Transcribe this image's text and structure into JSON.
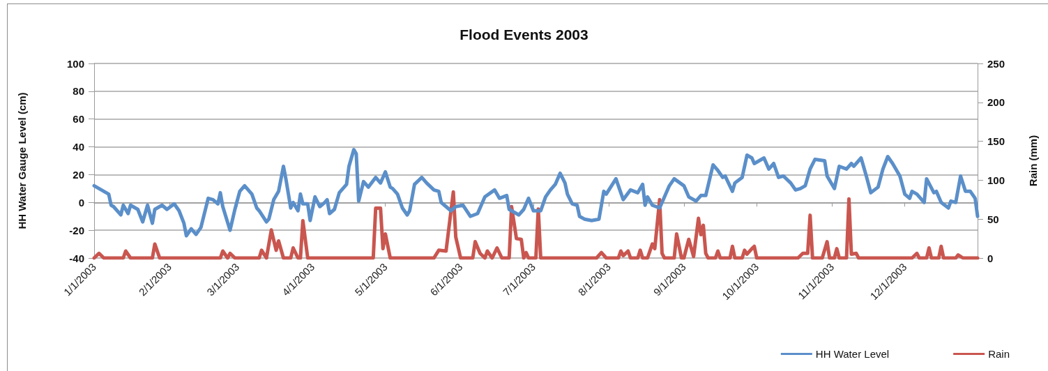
{
  "chart_data": {
    "type": "line",
    "title": "Flood Events 2003",
    "ylabel": "HH Water Gauge Level (cm)",
    "y2label": "Rain (mm)",
    "xlim": [
      "2003-01-01",
      "2003-12-31"
    ],
    "xticks": [
      {
        "value": "2003-01-01",
        "label": "1/1/2003"
      },
      {
        "value": "2003-02-01",
        "label": "2/1/2003"
      },
      {
        "value": "2003-03-01",
        "label": "3/1/2003"
      },
      {
        "value": "2003-04-01",
        "label": "4/1/2003"
      },
      {
        "value": "2003-05-01",
        "label": "5/1/2003"
      },
      {
        "value": "2003-06-01",
        "label": "6/1/2003"
      },
      {
        "value": "2003-07-01",
        "label": "7/1/2003"
      },
      {
        "value": "2003-08-01",
        "label": "8/1/2003"
      },
      {
        "value": "2003-09-01",
        "label": "9/1/2003"
      },
      {
        "value": "2003-10-01",
        "label": "10/1/2003"
      },
      {
        "value": "2003-11-01",
        "label": "11/1/2003"
      },
      {
        "value": "2003-12-01",
        "label": "12/1/2003"
      }
    ],
    "ylim": [
      -40,
      100
    ],
    "yticks": [
      -40,
      -20,
      0,
      20,
      40,
      60,
      80,
      100
    ],
    "y2lim": [
      0,
      250
    ],
    "y2ticks": [
      0,
      50,
      100,
      150,
      200,
      250
    ],
    "grid": "y",
    "legend": "bottom right",
    "marker": "none",
    "line_style": "solid",
    "series": [
      {
        "name": "HH Water Level",
        "color": "#5b8fc9",
        "x": [
          "2003-01-01",
          "2003-01-04",
          "2003-01-07",
          "2003-01-08",
          "2003-01-09",
          "2003-01-12",
          "2003-01-13",
          "2003-01-15",
          "2003-01-16",
          "2003-01-19",
          "2003-01-21",
          "2003-01-23",
          "2003-01-25",
          "2003-01-26",
          "2003-01-29",
          "2003-01-31",
          "2003-02-03",
          "2003-02-05",
          "2003-02-07",
          "2003-02-08",
          "2003-02-10",
          "2003-02-12",
          "2003-02-14",
          "2003-02-17",
          "2003-02-19",
          "2003-02-21",
          "2003-02-22",
          "2003-02-23",
          "2003-02-26",
          "2003-02-28",
          "2003-03-02",
          "2003-03-04",
          "2003-03-07",
          "2003-03-09",
          "2003-03-10",
          "2003-03-13",
          "2003-03-14",
          "2003-03-16",
          "2003-03-18",
          "2003-03-20",
          "2003-03-21",
          "2003-03-23",
          "2003-03-24",
          "2003-03-26",
          "2003-03-27",
          "2003-03-28",
          "2003-03-30",
          "2003-03-31",
          "2003-04-02",
          "2003-04-04",
          "2003-04-06",
          "2003-04-07",
          "2003-04-08",
          "2003-04-10",
          "2003-04-12",
          "2003-04-15",
          "2003-04-16",
          "2003-04-18",
          "2003-04-19",
          "2003-04-20",
          "2003-04-22",
          "2003-04-24",
          "2003-04-27",
          "2003-04-29",
          "2003-05-01",
          "2003-05-03",
          "2003-05-04",
          "2003-05-06",
          "2003-05-08",
          "2003-05-10",
          "2003-05-11",
          "2003-05-13",
          "2003-05-16",
          "2003-05-18",
          "2003-05-21",
          "2003-05-23",
          "2003-05-24",
          "2003-05-26",
          "2003-05-28",
          "2003-05-30",
          "2003-06-02",
          "2003-06-05",
          "2003-06-08",
          "2003-06-11",
          "2003-06-15",
          "2003-06-17",
          "2003-06-20",
          "2003-06-21",
          "2003-06-25",
          "2003-06-27",
          "2003-06-29",
          "2003-07-01",
          "2003-07-04",
          "2003-07-06",
          "2003-07-08",
          "2003-07-10",
          "2003-07-12",
          "2003-07-14",
          "2003-07-15",
          "2003-07-17",
          "2003-07-19",
          "2003-07-20",
          "2003-07-22",
          "2003-07-25",
          "2003-07-28",
          "2003-07-30",
          "2003-07-31",
          "2003-08-04",
          "2003-08-06",
          "2003-08-07",
          "2003-08-10",
          "2003-08-13",
          "2003-08-15",
          "2003-08-16",
          "2003-08-17",
          "2003-08-19",
          "2003-08-22",
          "2003-08-24",
          "2003-08-26",
          "2003-08-28",
          "2003-09-01",
          "2003-09-03",
          "2003-09-06",
          "2003-09-08",
          "2003-09-10",
          "2003-09-13",
          "2003-09-15",
          "2003-09-17",
          "2003-09-18",
          "2003-09-21",
          "2003-09-22",
          "2003-09-25",
          "2003-09-27",
          "2003-09-29",
          "2003-09-30",
          "2003-10-04",
          "2003-10-06",
          "2003-10-08",
          "2003-10-10",
          "2003-10-12",
          "2003-10-15",
          "2003-10-17",
          "2003-10-19",
          "2003-10-21",
          "2003-10-23",
          "2003-10-25",
          "2003-10-29",
          "2003-10-30",
          "2003-11-02",
          "2003-11-04",
          "2003-11-07",
          "2003-11-09",
          "2003-11-10",
          "2003-11-13",
          "2003-11-15",
          "2003-11-17",
          "2003-11-20",
          "2003-11-22",
          "2003-11-24",
          "2003-11-26",
          "2003-11-29",
          "2003-12-01",
          "2003-12-03",
          "2003-12-04",
          "2003-12-06",
          "2003-12-09",
          "2003-12-10",
          "2003-12-13",
          "2003-12-14",
          "2003-12-16",
          "2003-12-19",
          "2003-12-20",
          "2003-12-22",
          "2003-12-24",
          "2003-12-26",
          "2003-12-28",
          "2003-12-30",
          "2003-12-31"
        ],
        "values": [
          12,
          9,
          6,
          -2,
          -3,
          -9,
          -2,
          -8,
          -2,
          -5,
          -14,
          -2,
          -15,
          -5,
          -2,
          -5,
          -1,
          -6,
          -15,
          -24,
          -19,
          -23,
          -18,
          3,
          2,
          -1,
          7,
          -3,
          -20,
          -5,
          8,
          12,
          6,
          -4,
          -6,
          -14,
          -12,
          2,
          8,
          26,
          17,
          -4,
          0,
          -6,
          6,
          -1,
          -1,
          -13,
          4,
          -3,
          0,
          2,
          -8,
          -5,
          7,
          13,
          26,
          38,
          35,
          1,
          15,
          11,
          18,
          14,
          22,
          11,
          10,
          6,
          -4,
          -9,
          -6,
          13,
          18,
          14,
          9,
          8,
          0,
          -3,
          -6,
          -3,
          -2,
          -10,
          -8,
          4,
          9,
          3,
          5,
          -5,
          -9,
          -5,
          3,
          -6,
          -6,
          4,
          9,
          13,
          21,
          14,
          6,
          -1,
          -2,
          -10,
          -12,
          -13,
          -12,
          8,
          6,
          17,
          7,
          2,
          9,
          7,
          13,
          -2,
          4,
          -2,
          -4,
          4,
          12,
          17,
          12,
          4,
          1,
          5,
          5,
          27,
          23,
          18,
          19,
          8,
          14,
          18,
          34,
          32,
          28,
          32,
          24,
          28,
          18,
          19,
          14,
          9,
          10,
          12,
          24,
          31,
          30,
          19,
          10,
          26,
          24,
          28,
          26,
          32,
          20,
          7,
          11,
          24,
          33,
          28,
          19,
          6,
          3,
          8,
          6,
          0,
          17,
          7,
          8,
          0,
          -4,
          1,
          0,
          19,
          8,
          8,
          3,
          -10
        ]
      },
      {
        "name": "Rain",
        "color": "#c9564f",
        "axis": "y2",
        "x": [
          "2003-01-01",
          "2003-01-03",
          "2003-01-05",
          "2003-01-13",
          "2003-01-14",
          "2003-01-16",
          "2003-01-25",
          "2003-01-26",
          "2003-01-28",
          "2003-02-22",
          "2003-02-23",
          "2003-02-25",
          "2003-02-26",
          "2003-02-28",
          "2003-03-10",
          "2003-03-11",
          "2003-03-13",
          "2003-03-15",
          "2003-03-17",
          "2003-03-18",
          "2003-03-20",
          "2003-03-23",
          "2003-03-24",
          "2003-03-26",
          "2003-03-27",
          "2003-03-28",
          "2003-03-30",
          "2003-04-26",
          "2003-04-27",
          "2003-04-29",
          "2003-04-30",
          "2003-05-01",
          "2003-05-03",
          "2003-05-21",
          "2003-05-23",
          "2003-05-26",
          "2003-05-29",
          "2003-05-30",
          "2003-06-01",
          "2003-06-06",
          "2003-06-07",
          "2003-06-09",
          "2003-06-11",
          "2003-06-12",
          "2003-06-14",
          "2003-06-16",
          "2003-06-18",
          "2003-06-21",
          "2003-06-22",
          "2003-06-24",
          "2003-06-26",
          "2003-06-27",
          "2003-06-28",
          "2003-06-29",
          "2003-07-02",
          "2003-07-03",
          "2003-07-04",
          "2003-07-27",
          "2003-07-29",
          "2003-07-31",
          "2003-08-05",
          "2003-08-06",
          "2003-08-07",
          "2003-08-09",
          "2003-08-10",
          "2003-08-13",
          "2003-08-14",
          "2003-08-15",
          "2003-08-17",
          "2003-08-19",
          "2003-08-20",
          "2003-08-22",
          "2003-08-23",
          "2003-08-24",
          "2003-08-28",
          "2003-08-29",
          "2003-08-31",
          "2003-09-01",
          "2003-09-03",
          "2003-09-05",
          "2003-09-07",
          "2003-09-08",
          "2003-09-09",
          "2003-09-10",
          "2003-09-11",
          "2003-09-14",
          "2003-09-15",
          "2003-09-16",
          "2003-09-20",
          "2003-09-21",
          "2003-09-22",
          "2003-09-25",
          "2003-09-26",
          "2003-09-27",
          "2003-09-29",
          "2003-09-30",
          "2003-10-01",
          "2003-10-18",
          "2003-10-20",
          "2003-10-22",
          "2003-10-23",
          "2003-10-24",
          "2003-10-28",
          "2003-10-30",
          "2003-10-31",
          "2003-11-02",
          "2003-11-03",
          "2003-11-04",
          "2003-11-07",
          "2003-11-08",
          "2003-11-09",
          "2003-11-11",
          "2003-11-12",
          "2003-12-04",
          "2003-12-06",
          "2003-12-07",
          "2003-12-10",
          "2003-12-11",
          "2003-12-12",
          "2003-12-15",
          "2003-12-16",
          "2003-12-17",
          "2003-12-22",
          "2003-12-23",
          "2003-12-25",
          "2003-12-31"
        ],
        "values": [
          0,
          6,
          0,
          0,
          9,
          0,
          0,
          18,
          0,
          0,
          9,
          0,
          6,
          0,
          0,
          10,
          0,
          36,
          10,
          22,
          0,
          0,
          13,
          0,
          0,
          48,
          0,
          0,
          64,
          64,
          12,
          31,
          0,
          0,
          10,
          9,
          85,
          27,
          0,
          0,
          21,
          6,
          0,
          9,
          0,
          13,
          0,
          0,
          66,
          25,
          24,
          0,
          7,
          0,
          0,
          63,
          0,
          0,
          7,
          0,
          0,
          9,
          3,
          9,
          0,
          0,
          10,
          0,
          0,
          18,
          12,
          75,
          6,
          0,
          0,
          31,
          0,
          0,
          24,
          2,
          51,
          30,
          42,
          6,
          0,
          0,
          9,
          0,
          0,
          15,
          0,
          0,
          10,
          5,
          12,
          15,
          0,
          0,
          6,
          6,
          55,
          0,
          0,
          21,
          0,
          0,
          12,
          0,
          0,
          76,
          5,
          6,
          0,
          0,
          6,
          0,
          0,
          13,
          0,
          0,
          15,
          0,
          0,
          4,
          0,
          0
        ]
      }
    ]
  }
}
